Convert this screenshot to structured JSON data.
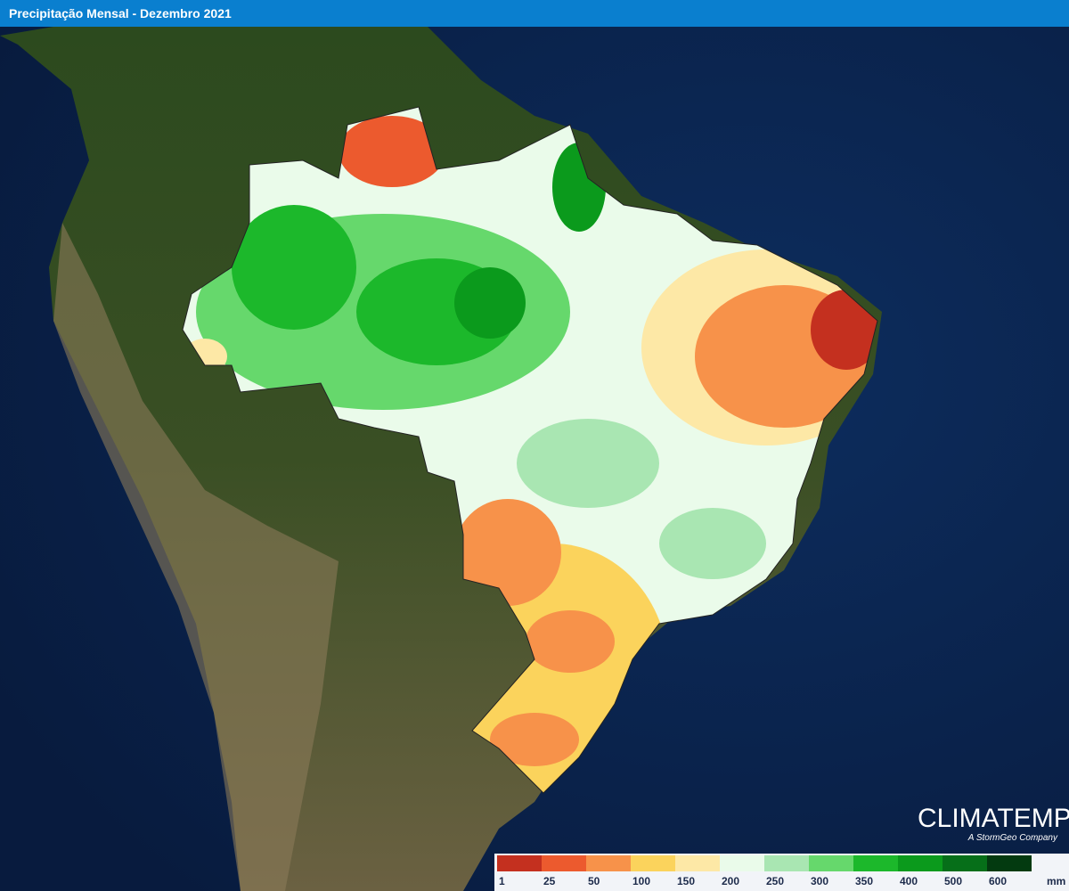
{
  "header": {
    "title": "Precipitação Mensal - Dezembro 2021"
  },
  "logo": {
    "name": "CLIMATEMPO",
    "tagline": "A StormGeo Company"
  },
  "legend": {
    "colors": [
      "#c4301f",
      "#ec5a2e",
      "#f7924a",
      "#fbd35c",
      "#fde8a6",
      "#eafbea",
      "#a9e6b2",
      "#66d86c",
      "#1cb82b",
      "#0b9a1c",
      "#066f19",
      "#033a10"
    ],
    "labels": [
      1,
      25,
      50,
      100,
      150,
      200,
      250,
      300,
      350,
      400,
      500,
      600
    ],
    "unit": "mm"
  }
}
